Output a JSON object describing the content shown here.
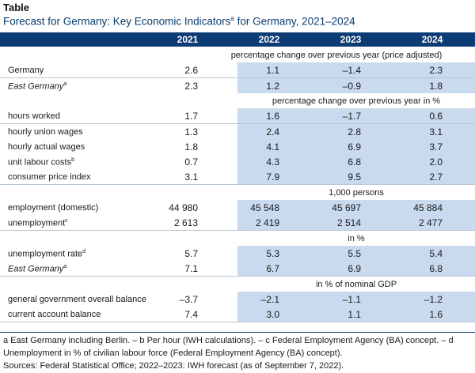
{
  "label": "Table",
  "title": "Forecast for Germany: Key Economic Indicators",
  "title_sup": "a",
  "title_rest": " for Germany, 2021–2024",
  "years": [
    "2021",
    "2022",
    "2023",
    "2024"
  ],
  "sections": [
    {
      "unit": "percentage change over previous year (price adjusted)",
      "rows": [
        {
          "name": "Germany",
          "italic": false,
          "values": [
            "2.6",
            "1.1",
            "–1.4",
            "2.3"
          ]
        },
        {
          "name": "East Germany",
          "sup": "a",
          "italic": true,
          "values": [
            "2.3",
            "1.2",
            "–0.9",
            "1.8"
          ]
        }
      ]
    },
    {
      "unit": "percentage change over previous year in %",
      "rows": [
        {
          "name": "hours worked",
          "italic": false,
          "values": [
            "1.7",
            "1.6",
            "–1.7",
            "0.6"
          ]
        },
        {
          "name": "hourly union wages",
          "italic": false,
          "values": [
            "1.3",
            "2.4",
            "2.8",
            "3.1"
          ]
        },
        {
          "name": "hourly actual wages",
          "italic": false,
          "values": [
            "1.8",
            "4.1",
            "6.9",
            "3.7"
          ]
        },
        {
          "name": "unit labour costs",
          "sup": "b",
          "italic": false,
          "values": [
            "0.7",
            "4.3",
            "6.8",
            "2.0"
          ]
        },
        {
          "name": "consumer price index",
          "italic": false,
          "values": [
            "3.1",
            "7.9",
            "9.5",
            "2.7"
          ]
        }
      ]
    },
    {
      "unit": "1,000 persons",
      "rows": [
        {
          "name": "employment (domestic)",
          "italic": false,
          "values": [
            "44 980",
            "45 548",
            "45 697",
            "45 884"
          ]
        },
        {
          "name": "unemployment",
          "sup": "c",
          "italic": false,
          "values": [
            "2 613",
            "2 419",
            "2 514",
            "2 477"
          ]
        }
      ]
    },
    {
      "unit": "in %",
      "rows": [
        {
          "name": "unemployment rate",
          "sup": "d",
          "italic": false,
          "values": [
            "5.7",
            "5.3",
            "5.5",
            "5.4"
          ]
        },
        {
          "name": "East Germany",
          "sup": "a",
          "italic": true,
          "values": [
            "7.1",
            "6.7",
            "6.9",
            "6.8"
          ]
        }
      ]
    },
    {
      "unit": "in % of nominal GDP",
      "rows": [
        {
          "name": "general government overall balance",
          "italic": false,
          "values": [
            "–3.7",
            "–2.1",
            "–1.1",
            "–1.2"
          ]
        },
        {
          "name": "current account balance",
          "italic": false,
          "values": [
            "7.4",
            "3.0",
            "1.1",
            "1.6"
          ]
        }
      ]
    }
  ],
  "footnotes": [
    "a East Germany including Berlin. – b Per hour (IWH calculations). – c Federal Employment Agency (BA) concept. – d",
    "Unemployment in % of civilian labour force (Federal Employment Agency (BA) concept).",
    "Sources: Federal Statistical Office; 2022–2023: IWH forecast (as of September 7, 2022)."
  ],
  "colors": {
    "header": "#0d3b73",
    "forecast_shade": "#c9d9ee",
    "title": "#0b3d6e"
  }
}
